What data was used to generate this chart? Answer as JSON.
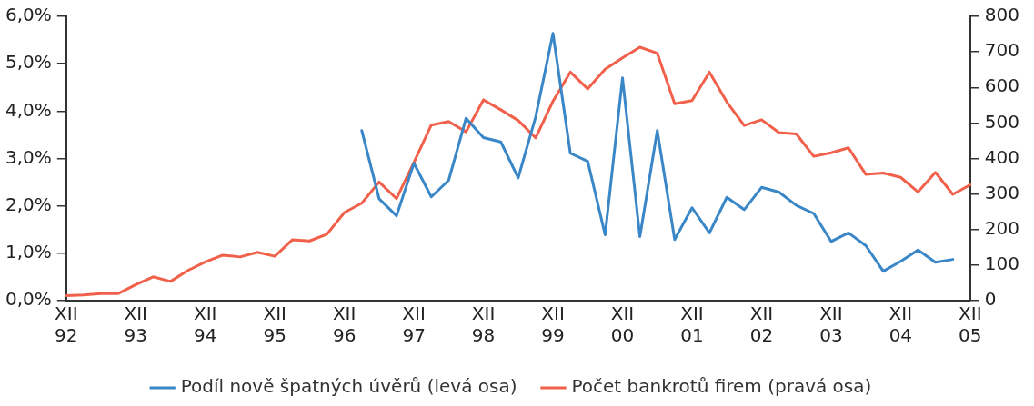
{
  "chart_data": {
    "type": "line",
    "categories": [
      "XII 92",
      null,
      null,
      null,
      "XII 93",
      null,
      null,
      null,
      "XII 94",
      null,
      null,
      null,
      "XII 95",
      null,
      null,
      null,
      "XII 96",
      null,
      null,
      null,
      "XII 97",
      null,
      null,
      null,
      "XII 98",
      null,
      null,
      null,
      "XII 99",
      null,
      null,
      null,
      "XII 00",
      null,
      null,
      null,
      "XII 01",
      null,
      null,
      null,
      "XII 02",
      null,
      null,
      null,
      "XII 03",
      null,
      null,
      null,
      "XII 04",
      null,
      null,
      null,
      "XII 05"
    ],
    "ylim": [
      0,
      6
    ],
    "yticks": [
      {
        "value": 0,
        "label": "0,0%"
      },
      {
        "value": 1,
        "label": "1,0%"
      },
      {
        "value": 2,
        "label": "2,0%"
      },
      {
        "value": 3,
        "label": "3,0%"
      },
      {
        "value": 4,
        "label": "4,0%"
      },
      {
        "value": 5,
        "label": "5,0%"
      },
      {
        "value": 6,
        "label": "6,0%"
      }
    ],
    "y2lim": [
      0,
      800
    ],
    "y2ticks": [
      0,
      100,
      200,
      300,
      400,
      500,
      600,
      700,
      800
    ],
    "grid": false,
    "legend": "bottom",
    "marker": "none",
    "line_style": "solid",
    "series": [
      {
        "name": "Podíl nově špatných úvěrů (levá osa)",
        "color": "#3a87c8",
        "values": [
          null,
          null,
          null,
          null,
          null,
          null,
          null,
          null,
          null,
          null,
          null,
          null,
          null,
          null,
          null,
          null,
          null,
          3.59,
          2.15,
          1.79,
          2.9,
          2.19,
          2.54,
          3.85,
          3.44,
          3.35,
          2.59,
          3.87,
          5.64,
          3.11,
          2.94,
          1.39,
          4.7,
          1.35,
          3.59,
          1.29,
          1.96,
          1.43,
          2.18,
          1.92,
          2.39,
          2.29,
          2.01,
          1.84,
          1.25,
          1.43,
          1.16,
          0.62,
          0.83,
          1.07,
          0.81,
          0.87,
          null
        ]
      },
      {
        "name": "Počet bankrotů firem (pravá osa)",
        "color": "#f0604a",
        "axis": "y2",
        "values": [
          14,
          16,
          20,
          20,
          45,
          67,
          54,
          85,
          109,
          128,
          123,
          136,
          125,
          171,
          168,
          187,
          248,
          274,
          334,
          287,
          389,
          494,
          504,
          475,
          565,
          537,
          507,
          458,
          561,
          643,
          596,
          651,
          683,
          713,
          696,
          554,
          563,
          643,
          559,
          493,
          509,
          473,
          469,
          406,
          416,
          430,
          355,
          359,
          347,
          306,
          361,
          299,
          326
        ]
      }
    ]
  }
}
